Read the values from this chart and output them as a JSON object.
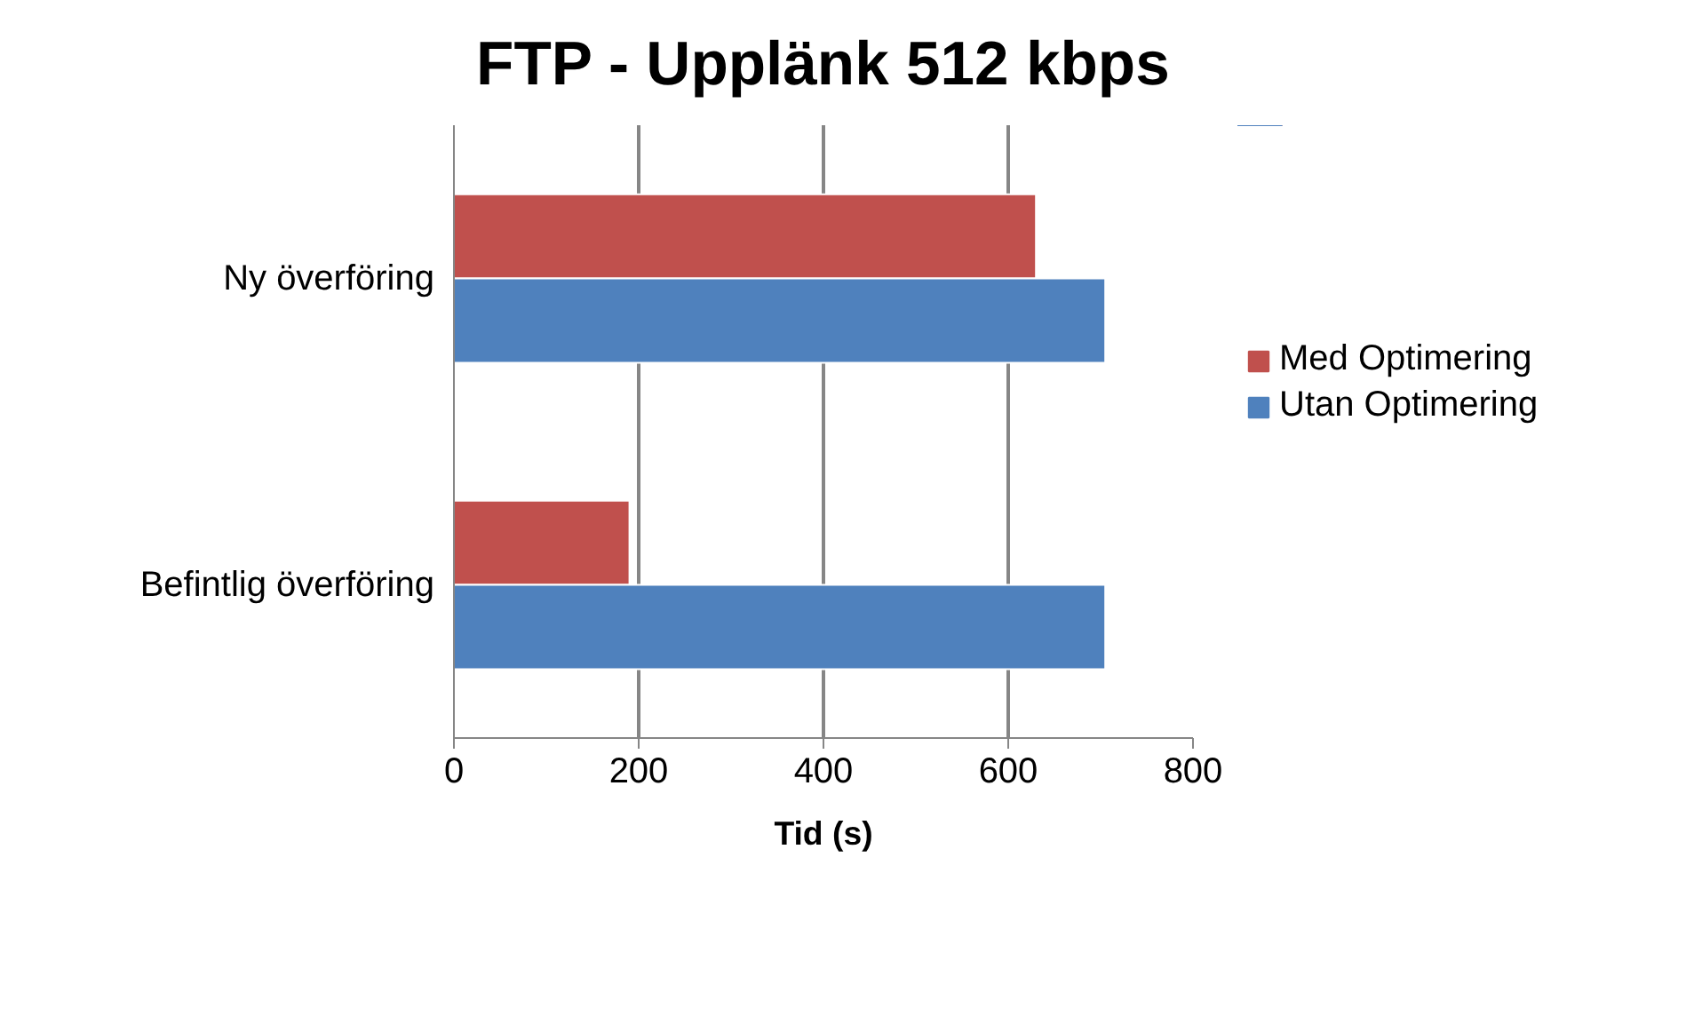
{
  "chart_data": {
    "type": "bar",
    "orientation": "horizontal",
    "title": "FTP - Upplänk 512 kbps",
    "xlabel": "Tid (s)",
    "categories": [
      "Ny överföring",
      "Befintlig överföring"
    ],
    "series": [
      {
        "name": "Med Optimering",
        "color": "#c0504d",
        "values": [
          630,
          190
        ]
      },
      {
        "name": "Utan Optimering",
        "color": "#4f81bd",
        "values": [
          705,
          705
        ]
      }
    ],
    "xlim": [
      0,
      800
    ],
    "xticks": [
      0,
      200,
      400,
      600,
      800
    ],
    "grid": "x",
    "legend": "right"
  }
}
